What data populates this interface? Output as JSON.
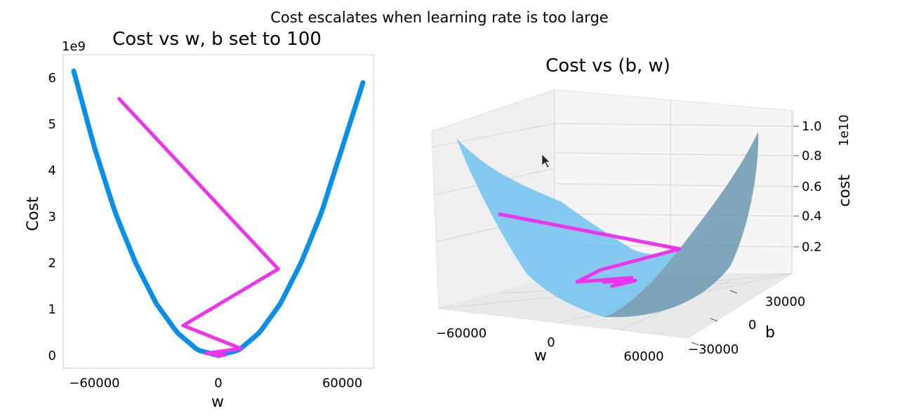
{
  "suptitle": "Cost escalates when learning rate is too large",
  "chart_data": [
    {
      "type": "line",
      "title": "Cost vs w, b set to 100",
      "xlabel": "w",
      "ylabel": "Cost",
      "y_offset_label": "1e9",
      "xlim": [
        -70000,
        70000
      ],
      "ylim": [
        0,
        6.2
      ],
      "xticks": [
        -60000,
        0,
        60000
      ],
      "xtick_labels": [
        "−60000",
        "0",
        "60000"
      ],
      "yticks": [
        0,
        1,
        2,
        3,
        4,
        5,
        6
      ],
      "grid": false,
      "series": [
        {
          "name": "cost curve",
          "color": "#0a8fe6",
          "x": [
            -70000,
            -60000,
            -50000,
            -40000,
            -30000,
            -20000,
            -10000,
            0,
            10000,
            20000,
            30000,
            40000,
            50000,
            60000,
            70000
          ],
          "y": [
            6.15,
            4.5,
            3.1,
            2.0,
            1.12,
            0.5,
            0.12,
            0,
            0.12,
            0.5,
            1.12,
            2.0,
            3.1,
            4.5,
            5.9
          ]
        },
        {
          "name": "gradient descent path",
          "color": "#ee33ee",
          "x": [
            -48000,
            29000,
            -17000,
            11000,
            -6000,
            3000,
            -1000
          ],
          "y": [
            5.55,
            1.87,
            0.65,
            0.15,
            0.05,
            0.01,
            0.0
          ]
        }
      ]
    },
    {
      "type": "surface",
      "title": "Cost vs (b, w)",
      "xlabel": "w",
      "ylabel": "b",
      "zlabel": "cost",
      "z_offset_label": "1e10",
      "w_ticks": [
        "−60000",
        "0",
        "60000"
      ],
      "b_ticks": [
        "30000",
        "0",
        "−30000"
      ],
      "z_ticks": [
        "0.2",
        "0.4",
        "0.6",
        "0.8",
        "1.0"
      ],
      "surface_color": "#6cc2f0",
      "path_color": "#ee33ee"
    }
  ]
}
